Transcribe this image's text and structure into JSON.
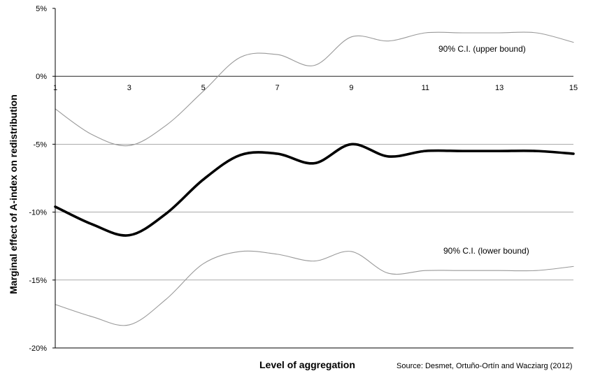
{
  "chart_data": {
    "type": "line",
    "xlabel": "Level of aggregation",
    "ylabel": "Marginal effect of A-index on redistribution",
    "xlim": [
      1,
      15
    ],
    "ylim": [
      -20,
      5
    ],
    "x_ticks": [
      "1",
      "3",
      "5",
      "7",
      "9",
      "11",
      "13",
      "15"
    ],
    "y_ticks": [
      {
        "value": 5,
        "label": "5%"
      },
      {
        "value": 0,
        "label": "0%"
      },
      {
        "value": -5,
        "label": "-5%"
      },
      {
        "value": -10,
        "label": "-10%"
      },
      {
        "value": -15,
        "label": "-15%"
      },
      {
        "value": -20,
        "label": "-20%"
      }
    ],
    "gridlines_y": [
      0,
      -5,
      -10,
      -15
    ],
    "x": [
      1,
      2,
      3,
      4,
      5,
      6,
      7,
      8,
      9,
      10,
      11,
      12,
      13,
      14,
      15
    ],
    "series": [
      {
        "values": [
          -9.6,
          -10.9,
          -11.7,
          -10.1,
          -7.6,
          -5.8,
          -5.7,
          -6.4,
          -5.0,
          -5.9,
          -5.5,
          -5.5,
          -5.5,
          -5.5,
          -5.7
        ],
        "color": "#000000",
        "style": "thick"
      },
      {
        "values": [
          -2.4,
          -4.3,
          -5.1,
          -3.6,
          -1.1,
          1.4,
          1.6,
          0.8,
          2.9,
          2.6,
          3.2,
          3.2,
          3.2,
          3.2,
          2.5
        ],
        "color": "#999999",
        "style": "thin"
      },
      {
        "values": [
          -16.8,
          -17.7,
          -18.3,
          -16.4,
          -13.8,
          -12.9,
          -13.1,
          -13.6,
          -12.9,
          -14.5,
          -14.3,
          -14.3,
          -14.3,
          -14.3,
          -14.0
        ],
        "color": "#999999",
        "style": "thin"
      }
    ],
    "annotations": {
      "upper": "90% C.I. (upper bound)",
      "lower": "90% C.I. (lower bound)"
    },
    "source": "Source: Desmet, Ortuño-Ortín and Wacziarg (2012)",
    "grid": true,
    "legend": "none"
  }
}
